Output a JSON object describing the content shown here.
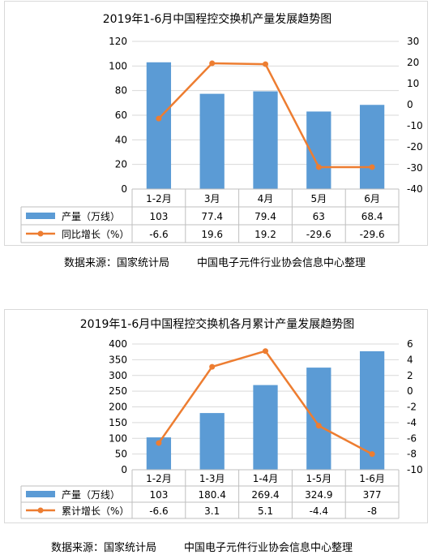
{
  "charts": [
    {
      "id": "c1",
      "title": "2019年1-6月中国程控交换机产量发展趋势图",
      "bar_color": "#5b9bd5",
      "line_color": "#ed7d31",
      "categories": [
        "1-2月",
        "3月",
        "4月",
        "5月",
        "6月"
      ],
      "bar_series": {
        "name": "产量（万线）",
        "values": [
          103,
          77.4,
          79.4,
          63,
          68.4
        ],
        "labels": [
          "103",
          "77.4",
          "79.4",
          "63",
          "68.4"
        ]
      },
      "line_series": {
        "name": "同比增长（%）",
        "values": [
          -6.6,
          19.6,
          19.2,
          -29.6,
          -29.6
        ],
        "labels": [
          "-6.6",
          "19.6",
          "19.2",
          "-29.6",
          "-29.6"
        ]
      },
      "left_axis": {
        "min": 0,
        "max": 120,
        "step": 20
      },
      "right_axis": {
        "min": -40,
        "max": 30,
        "step": 10
      },
      "source": "数据来源：国家统计局",
      "org": "中国电子元件行业协会信息中心整理"
    },
    {
      "id": "c2",
      "title": "2019年1-6月中国程控交换机各月累计产量发展趋势图",
      "bar_color": "#5b9bd5",
      "line_color": "#ed7d31",
      "categories": [
        "1-2月",
        "1-3月",
        "1-4月",
        "1-5月",
        "1-6月"
      ],
      "bar_series": {
        "name": "产量（万线）",
        "values": [
          103,
          180.4,
          269.4,
          324.9,
          377
        ],
        "labels": [
          "103",
          "180.4",
          "269.4",
          "324.9",
          "377"
        ]
      },
      "line_series": {
        "name": "累计增长（%）",
        "values": [
          -6.6,
          3.1,
          5.1,
          -4.4,
          -8
        ],
        "labels": [
          "-6.6",
          "3.1",
          "5.1",
          "-4.4",
          "-8"
        ]
      },
      "left_axis": {
        "min": 0,
        "max": 400,
        "step": 50
      },
      "right_axis": {
        "min": -10,
        "max": 6,
        "step": 2
      },
      "source": "数据来源：国家统计局",
      "org": "中国电子元件行业协会信息中心整理"
    }
  ],
  "chart_data": [
    {
      "type": "bar",
      "title": "2019年1-6月中国程控交换机产量发展趋势图",
      "categories": [
        "1-2月",
        "3月",
        "4月",
        "5月",
        "6月"
      ],
      "series": [
        {
          "name": "产量（万线）",
          "type": "bar",
          "axis": "left",
          "values": [
            103,
            77.4,
            79.4,
            63,
            68.4
          ]
        },
        {
          "name": "同比增长（%）",
          "type": "line",
          "axis": "right",
          "values": [
            -6.6,
            19.6,
            19.2,
            -29.6,
            -29.6
          ]
        }
      ],
      "ylim_left": [
        0,
        120
      ],
      "ylim_right": [
        -40,
        30
      ],
      "grid": true,
      "legend": "data-table"
    },
    {
      "type": "bar",
      "title": "2019年1-6月中国程控交换机各月累计产量发展趋势图",
      "categories": [
        "1-2月",
        "1-3月",
        "1-4月",
        "1-5月",
        "1-6月"
      ],
      "series": [
        {
          "name": "产量（万线）",
          "type": "bar",
          "axis": "left",
          "values": [
            103,
            180.4,
            269.4,
            324.9,
            377
          ]
        },
        {
          "name": "累计增长（%）",
          "type": "line",
          "axis": "right",
          "values": [
            -6.6,
            3.1,
            5.1,
            -4.4,
            -8
          ]
        }
      ],
      "ylim_left": [
        0,
        400
      ],
      "ylim_right": [
        -10,
        6
      ],
      "grid": true,
      "legend": "data-table"
    }
  ]
}
